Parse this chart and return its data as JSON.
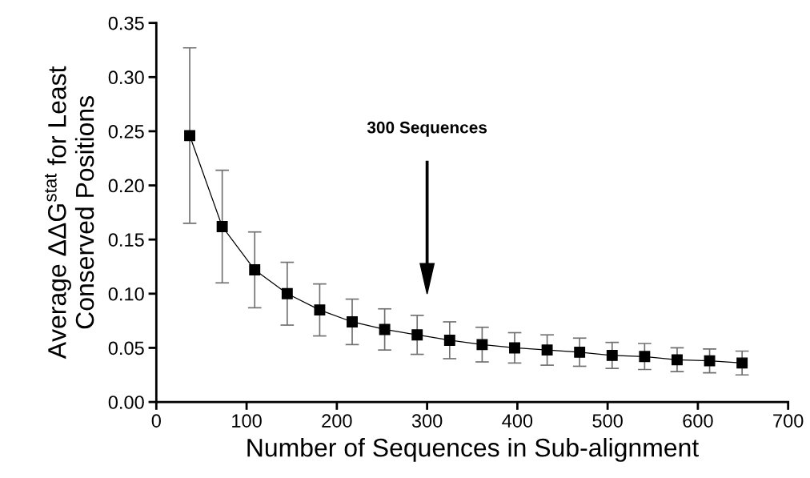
{
  "chart_data": {
    "type": "line",
    "xlabel": "Number of Sequences in Sub-alignment",
    "ylabel": "Average ΔΔG$^{stat}$ for Least\nConserved Positions",
    "x": [
      37,
      73,
      109,
      145,
      181,
      217,
      253,
      289,
      325,
      361,
      397,
      433,
      469,
      505,
      541,
      577,
      613,
      649
    ],
    "series": [
      {
        "color": "#000000",
        "values": [
          0.246,
          0.162,
          0.122,
          0.1,
          0.085,
          0.074,
          0.067,
          0.062,
          0.057,
          0.053,
          0.05,
          0.048,
          0.046,
          0.043,
          0.042,
          0.039,
          0.038,
          0.036
        ],
        "errors": [
          0.081,
          0.052,
          0.035,
          0.029,
          0.024,
          0.021,
          0.019,
          0.018,
          0.017,
          0.016,
          0.014,
          0.014,
          0.013,
          0.012,
          0.012,
          0.011,
          0.011,
          0.011
        ]
      }
    ],
    "xlim": [
      0,
      700
    ],
    "xticks": [
      0,
      100,
      200,
      300,
      400,
      500,
      600,
      700
    ],
    "ylim": [
      0,
      0.35
    ],
    "yticks": [
      {
        "value": 0,
        "label": "0.00"
      },
      {
        "value": 0.05,
        "label": "0.05"
      },
      {
        "value": 0.1,
        "label": "0.10"
      },
      {
        "value": 0.15,
        "label": "0.15"
      },
      {
        "value": 0.2,
        "label": "0.20"
      },
      {
        "value": 0.25,
        "label": "0.25"
      },
      {
        "value": 0.3,
        "label": "0.30"
      },
      {
        "value": 0.35,
        "label": "0.35"
      }
    ],
    "annotations": [
      "300 Sequences"
    ],
    "marker": "square",
    "line_style": "solid"
  }
}
